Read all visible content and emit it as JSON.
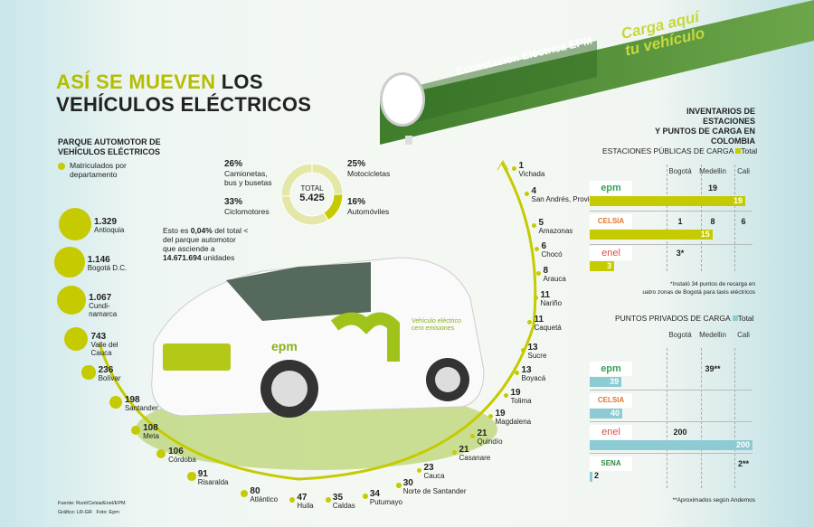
{
  "title": {
    "part1": "ASÍ SE MUEVEN",
    "part2": " LOS",
    "line2": "VEHÍCULOS ELÉCTRICOS"
  },
  "canopy": {
    "station": "Ecoestación Eléctrica EPM",
    "slogan_line1": "Carga aquí",
    "slogan_line2": "tu vehículo"
  },
  "parque": {
    "heading_line1": "PARQUE AUTOMOTOR DE",
    "heading_line2": "VEHÍCULOS ELÉCTRICOS",
    "legend_line1": "Matriculados por",
    "legend_line2": "departamento"
  },
  "note": {
    "l1a": "Esto es ",
    "l1b": "0,04%",
    "l1c": " del total <",
    "l2": "del parque automotor",
    "l3": "que asciende a",
    "l4a": "14.671.694",
    "l4b": " unidades"
  },
  "colors": {
    "accent": "#c5cb00",
    "public_bar": "#c5cb00",
    "private_bar": "#8ccbd3"
  },
  "chart_data": [
    {
      "type": "pie",
      "title": "TOTAL",
      "total": "5.425",
      "slices": [
        {
          "label": "Camionetas, bus y busetas",
          "value": 26,
          "pct": "26%"
        },
        {
          "label": "Motocicletas",
          "value": 25,
          "pct": "25%"
        },
        {
          "label": "Automóviles",
          "value": 16,
          "pct": "16%"
        },
        {
          "label": "Ciclomotores",
          "value": 33,
          "pct": "33%"
        }
      ]
    },
    {
      "type": "bubble",
      "title": "Matriculados por departamento",
      "points": [
        {
          "label": "Antioquia",
          "value": "1.329",
          "n": 1329
        },
        {
          "label": "Bogotá D.C.",
          "value": "1.146",
          "n": 1146
        },
        {
          "label": "Cundi-namarca",
          "value": "1.067",
          "n": 1067
        },
        {
          "label": "Valle del Cauca",
          "value": "743",
          "n": 743
        },
        {
          "label": "Bolívar",
          "value": "236",
          "n": 236
        },
        {
          "label": "Santander",
          "value": "198",
          "n": 198
        },
        {
          "label": "Meta",
          "value": "108",
          "n": 108
        },
        {
          "label": "Córdoba",
          "value": "106",
          "n": 106
        },
        {
          "label": "Risaralda",
          "value": "91",
          "n": 91
        },
        {
          "label": "Atlántico",
          "value": "80",
          "n": 80
        },
        {
          "label": "Huila",
          "value": "47",
          "n": 47
        },
        {
          "label": "Caldas",
          "value": "35",
          "n": 35
        },
        {
          "label": "Putumayo",
          "value": "34",
          "n": 34
        },
        {
          "label": "Norte de Santander",
          "value": "30",
          "n": 30
        },
        {
          "label": "Cauca",
          "value": "23",
          "n": 23
        },
        {
          "label": "Casanare",
          "value": "21",
          "n": 21
        },
        {
          "label": "Quindío",
          "value": "21",
          "n": 21
        },
        {
          "label": "Magdalena",
          "value": "19",
          "n": 19
        },
        {
          "label": "Tolima",
          "value": "19",
          "n": 19
        },
        {
          "label": "Boyacá",
          "value": "13",
          "n": 13
        },
        {
          "label": "Sucre",
          "value": "13",
          "n": 13
        },
        {
          "label": "Caquetá",
          "value": "11",
          "n": 11
        },
        {
          "label": "Nariño",
          "value": "11",
          "n": 11
        },
        {
          "label": "Arauca",
          "value": "8",
          "n": 8
        },
        {
          "label": "Chocó",
          "value": "6",
          "n": 6
        },
        {
          "label": "Amazonas",
          "value": "5",
          "n": 5
        },
        {
          "label": "San Andrés, Providencia",
          "value": "4",
          "n": 4
        },
        {
          "label": "Vichada",
          "value": "1",
          "n": 1
        }
      ]
    },
    {
      "type": "table",
      "title": "ESTACIONES PÚBLICAS DE CARGA",
      "legend": "Total",
      "columns": [
        "Bogotá",
        "Medellin",
        "Cali"
      ],
      "rows": [
        {
          "company": "epm",
          "Bogotá": "",
          "Medellin": "19",
          "Cali": "",
          "total": 19
        },
        {
          "company": "CELSIA",
          "Bogotá": "1",
          "Medellin": "8",
          "Cali": "6",
          "total": 15
        },
        {
          "company": "enel",
          "Bogotá": "3*",
          "Medellin": "",
          "Cali": "",
          "total": 3
        }
      ]
    },
    {
      "type": "table",
      "title": "PUNTOS PRIVADOS DE CARGA",
      "legend": "Total",
      "columns": [
        "Bogotá",
        "Medellin",
        "Cali"
      ],
      "rows": [
        {
          "company": "epm",
          "Bogotá": "",
          "Medellin": "39**",
          "Cali": "",
          "total": 39
        },
        {
          "company": "CELSIA",
          "Bogotá": "",
          "Medellin": "",
          "Cali": "",
          "total": 40
        },
        {
          "company": "enel",
          "Bogotá": "200",
          "Medellin": "",
          "Cali": "",
          "total": 200
        },
        {
          "company": "SENA",
          "Bogotá": "",
          "Medellin": "",
          "Cali": "2**",
          "total": 2
        }
      ]
    }
  ],
  "inventory": {
    "heading_line1": "INVENTARIOS DE ESTACIONES",
    "heading_line2": "Y PUNTOS DE CARGA EN COLOMBIA",
    "footnote1_l1": "*Instaló 34 puntos de recarga en",
    "footnote1_l2": "uatro zonas de Bogotá para taxis eléctricos",
    "footnote2": "**Aproximados según Andemos"
  },
  "car": {
    "brand": "epm",
    "side_text_1": "Vehículo eléctrico",
    "side_text_2": "cero emisiones"
  },
  "credits": {
    "source": "Fuente: Runt/Celsia/Enel/EPM",
    "graphic": "Gráfico: LR-GR",
    "photo": "Foto: Epm"
  }
}
